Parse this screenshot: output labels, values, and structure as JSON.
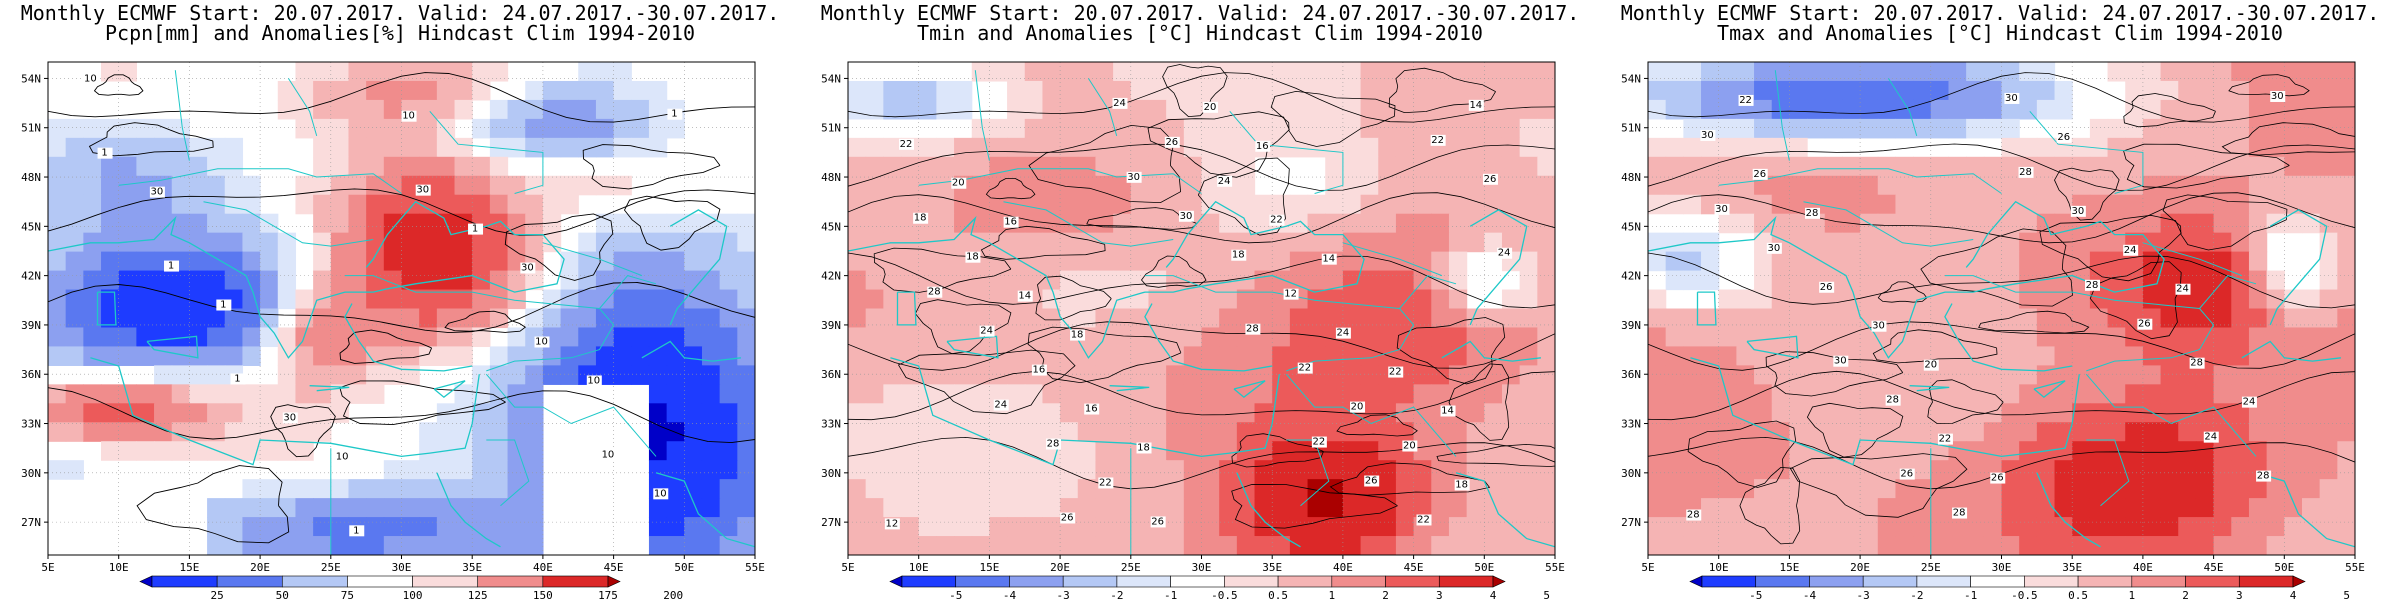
{
  "colors": {
    "neg5": "#0000c8",
    "neg4": "#1e3cff",
    "neg3": "#5a78f0",
    "neg2": "#8ca0f0",
    "neg1": "#b4c8f5",
    "neg05": "#dce6fa",
    "neutral": "#ffffff",
    "pos05": "#fadcdc",
    "pos1": "#f5b4b4",
    "pos2": "#f08c8c",
    "pos3": "#ec5a5a",
    "pos4": "#dc2828",
    "pos5": "#aa0000",
    "coast": "#1ec8c8",
    "contour": "#000000",
    "grid": "#999999"
  },
  "chart_data": [
    {
      "type": "heatmap",
      "title_line1": "Monthly ECMWF Start: 20.07.2017. Valid: 24.07.2017.-30.07.2017.",
      "title_line2": "Pcpn[mm] and Anomalies[%] Hindcast Clim 1994-2010",
      "x_ticks": [
        "5E",
        "10E",
        "15E",
        "20E",
        "25E",
        "30E",
        "35E",
        "40E",
        "45E",
        "50E",
        "55E"
      ],
      "y_ticks": [
        "54N",
        "51N",
        "48N",
        "45N",
        "42N",
        "39N",
        "36N",
        "33N",
        "30N",
        "27N"
      ],
      "xlim": [
        5,
        55
      ],
      "ylim": [
        25,
        55
      ],
      "colorbar_ticks": [
        "25",
        "50",
        "75",
        "100",
        "125",
        "150",
        "175",
        "200"
      ],
      "contour_labels": [
        "10",
        "30",
        "10",
        "30",
        "10",
        "10",
        "1",
        "10",
        "1",
        "30",
        "1",
        "10",
        "1",
        "1",
        "10",
        "30",
        "1",
        "1"
      ]
    },
    {
      "type": "heatmap",
      "title_line1": "Monthly ECMWF Start: 20.07.2017. Valid: 24.07.2017.-30.07.2017.",
      "title_line2": "Tmin and Anomalies [°C] Hindcast Clim 1994-2010",
      "x_ticks": [
        "5E",
        "10E",
        "15E",
        "20E",
        "25E",
        "30E",
        "35E",
        "40E",
        "45E",
        "50E",
        "55E"
      ],
      "y_ticks": [
        "54N",
        "51N",
        "48N",
        "45N",
        "42N",
        "39N",
        "36N",
        "33N",
        "30N",
        "27N"
      ],
      "xlim": [
        5,
        55
      ],
      "ylim": [
        25,
        55
      ],
      "colorbar_ticks": [
        "-5",
        "-4",
        "-3",
        "-2",
        "-1",
        "-0.5",
        "0.5",
        "1",
        "2",
        "3",
        "4",
        "5"
      ],
      "contour_labels": [
        "16",
        "14",
        "16",
        "18",
        "12",
        "14",
        "18",
        "20",
        "22",
        "20",
        "14",
        "18",
        "22",
        "16",
        "22",
        "24",
        "26",
        "18",
        "20",
        "24",
        "16",
        "14",
        "12",
        "22",
        "18",
        "20",
        "26",
        "24",
        "22",
        "18",
        "28",
        "26",
        "22",
        "24",
        "28",
        "26",
        "30",
        "24",
        "22",
        "28",
        "26",
        "24",
        "22",
        "30"
      ]
    },
    {
      "type": "heatmap",
      "title_line1": "Monthly ECMWF Start: 20.07.2017. Valid: 24.07.2017.-30.07.2017.",
      "title_line2": "Tmax and Anomalies [°C] Hindcast Clim 1994-2010",
      "x_ticks": [
        "5E",
        "10E",
        "15E",
        "20E",
        "25E",
        "30E",
        "35E",
        "40E",
        "45E",
        "50E",
        "55E"
      ],
      "y_ticks": [
        "54N",
        "51N",
        "48N",
        "45N",
        "42N",
        "39N",
        "36N",
        "33N",
        "30N",
        "27N"
      ],
      "xlim": [
        5,
        55
      ],
      "ylim": [
        25,
        55
      ],
      "colorbar_ticks": [
        "-5",
        "-4",
        "-3",
        "-2",
        "-1",
        "-0.5",
        "0.5",
        "1",
        "2",
        "3",
        "4",
        "5"
      ],
      "contour_labels": [
        "20",
        "22",
        "24",
        "26",
        "28",
        "24",
        "26",
        "30",
        "28",
        "24",
        "22",
        "26",
        "28",
        "30",
        "26",
        "28",
        "30",
        "28",
        "30",
        "26",
        "28",
        "30",
        "24",
        "28",
        "30",
        "30",
        "28",
        "26",
        "30"
      ]
    }
  ]
}
